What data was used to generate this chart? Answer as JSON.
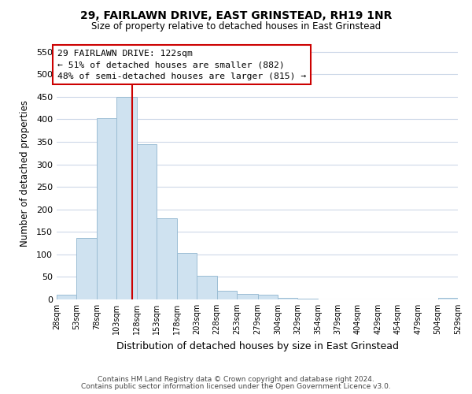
{
  "title": "29, FAIRLAWN DRIVE, EAST GRINSTEAD, RH19 1NR",
  "subtitle": "Size of property relative to detached houses in East Grinstead",
  "xlabel": "Distribution of detached houses by size in East Grinstead",
  "ylabel": "Number of detached properties",
  "bar_color": "#cfe2f0",
  "bar_edge_color": "#9bbdd4",
  "background_color": "#ffffff",
  "grid_color": "#cdd8e8",
  "bins": [
    28,
    53,
    78,
    103,
    128,
    153,
    178,
    203,
    228,
    253,
    279,
    304,
    329,
    354,
    379,
    404,
    429,
    454,
    479,
    504,
    529
  ],
  "counts": [
    10,
    137,
    402,
    450,
    345,
    180,
    104,
    52,
    20,
    13,
    10,
    4,
    1,
    0,
    0,
    0,
    0,
    0,
    0,
    3
  ],
  "vline_x": 122,
  "vline_color": "#cc0000",
  "annotation_title": "29 FAIRLAWN DRIVE: 122sqm",
  "annotation_line1": "← 51% of detached houses are smaller (882)",
  "annotation_line2": "48% of semi-detached houses are larger (815) →",
  "annotation_box_color": "#ffffff",
  "annotation_box_edge": "#cc0000",
  "ylim": [
    0,
    560
  ],
  "yticks": [
    0,
    50,
    100,
    150,
    200,
    250,
    300,
    350,
    400,
    450,
    500,
    550
  ],
  "footer1": "Contains HM Land Registry data © Crown copyright and database right 2024.",
  "footer2": "Contains public sector information licensed under the Open Government Licence v3.0.",
  "tick_labels": [
    "28sqm",
    "53sqm",
    "78sqm",
    "103sqm",
    "128sqm",
    "153sqm",
    "178sqm",
    "203sqm",
    "228sqm",
    "253sqm",
    "279sqm",
    "304sqm",
    "329sqm",
    "354sqm",
    "379sqm",
    "404sqm",
    "429sqm",
    "454sqm",
    "479sqm",
    "504sqm",
    "529sqm"
  ]
}
